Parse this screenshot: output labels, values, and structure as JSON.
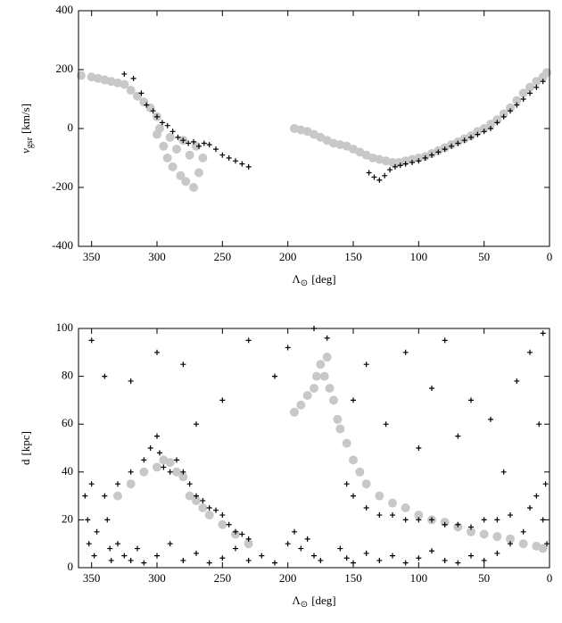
{
  "chart_data": [
    {
      "type": "scatter",
      "ylabel": {
        "symbol": "v",
        "sub": "gsr",
        "unit": "[km/s]"
      },
      "xlabel": {
        "symbol": "Λ",
        "sub": "⊙",
        "unit": "[deg]"
      },
      "xlim": [
        360,
        0
      ],
      "ylim": [
        -400,
        400
      ],
      "xticks": [
        350,
        300,
        250,
        200,
        150,
        100,
        50,
        0
      ],
      "yticks": [
        -400,
        -200,
        0,
        200,
        400
      ],
      "series": [
        {
          "color": "#c8c8c8",
          "marker": "dot",
          "x": [
            358,
            350,
            345,
            340,
            335,
            330,
            325,
            320,
            315,
            310,
            305,
            300,
            300,
            298,
            295,
            292,
            290,
            288,
            285,
            282,
            280,
            278,
            275,
            272,
            270,
            268,
            265,
            195,
            190,
            185,
            180,
            175,
            170,
            165,
            160,
            155,
            150,
            145,
            140,
            135,
            130,
            125,
            120,
            115,
            110,
            105,
            100,
            95,
            90,
            85,
            80,
            75,
            70,
            65,
            60,
            55,
            50,
            45,
            40,
            35,
            30,
            25,
            20,
            15,
            10,
            5,
            2
          ],
          "values": [
            180,
            175,
            170,
            165,
            160,
            155,
            150,
            130,
            110,
            90,
            70,
            40,
            -20,
            0,
            -60,
            -100,
            -30,
            -130,
            -70,
            -160,
            -40,
            -180,
            -90,
            -200,
            -60,
            -150,
            -100,
            0,
            -5,
            -10,
            -20,
            -30,
            -40,
            -50,
            -55,
            -60,
            -70,
            -80,
            -90,
            -100,
            -105,
            -110,
            -115,
            -115,
            -110,
            -105,
            -100,
            -95,
            -85,
            -75,
            -65,
            -55,
            -45,
            -35,
            -25,
            -10,
            0,
            15,
            30,
            50,
            70,
            95,
            120,
            140,
            160,
            175,
            190
          ]
        },
        {
          "color": "#000000",
          "marker": "plus",
          "x": [
            325,
            318,
            312,
            308,
            303,
            300,
            296,
            292,
            288,
            284,
            280,
            276,
            272,
            268,
            264,
            260,
            255,
            250,
            245,
            240,
            235,
            230,
            138,
            134,
            130,
            126,
            122,
            118,
            114,
            110,
            105,
            100,
            95,
            90,
            85,
            80,
            75,
            70,
            65,
            60,
            55,
            50,
            45,
            40,
            35,
            30,
            25,
            20,
            15,
            10,
            5
          ],
          "values": [
            185,
            170,
            120,
            80,
            60,
            40,
            20,
            10,
            -10,
            -30,
            -40,
            -50,
            -45,
            -60,
            -50,
            -55,
            -70,
            -90,
            -100,
            -110,
            -120,
            -130,
            -150,
            -165,
            -175,
            -160,
            -140,
            -130,
            -125,
            -120,
            -115,
            -110,
            -100,
            -90,
            -80,
            -70,
            -60,
            -50,
            -40,
            -30,
            -20,
            -10,
            0,
            20,
            40,
            60,
            80,
            100,
            120,
            140,
            160
          ]
        }
      ]
    },
    {
      "type": "scatter",
      "ylabel": {
        "symbol": "d",
        "sub": "",
        "unit": "[kpc]"
      },
      "xlabel": {
        "symbol": "Λ",
        "sub": "⊙",
        "unit": "[deg]"
      },
      "xlim": [
        360,
        0
      ],
      "ylim": [
        0,
        100
      ],
      "xticks": [
        350,
        300,
        250,
        200,
        150,
        100,
        50,
        0
      ],
      "yticks": [
        0,
        20,
        40,
        60,
        80,
        100
      ],
      "series": [
        {
          "color": "#c8c8c8",
          "marker": "dot",
          "x": [
            330,
            320,
            310,
            300,
            295,
            290,
            285,
            280,
            275,
            270,
            265,
            260,
            250,
            240,
            230,
            195,
            190,
            185,
            180,
            178,
            175,
            172,
            170,
            168,
            165,
            162,
            160,
            155,
            150,
            145,
            140,
            130,
            120,
            110,
            100,
            90,
            80,
            70,
            60,
            50,
            40,
            30,
            20,
            10,
            5
          ],
          "values": [
            30,
            35,
            40,
            42,
            45,
            44,
            40,
            38,
            30,
            28,
            25,
            22,
            18,
            14,
            10,
            65,
            68,
            72,
            75,
            80,
            85,
            80,
            88,
            75,
            70,
            62,
            58,
            52,
            45,
            40,
            35,
            30,
            27,
            25,
            22,
            20,
            19,
            17,
            15,
            14,
            13,
            12,
            10,
            9,
            8
          ]
        },
        {
          "color": "#000000",
          "marker": "plus",
          "x": [
            355,
            353,
            352,
            350,
            348,
            346,
            340,
            338,
            336,
            335,
            330,
            325,
            320,
            315,
            310,
            300,
            290,
            280,
            270,
            260,
            250,
            240,
            230,
            220,
            210,
            200,
            195,
            190,
            185,
            180,
            175,
            160,
            155,
            150,
            140,
            130,
            120,
            110,
            100,
            90,
            80,
            70,
            60,
            50,
            40,
            30,
            20,
            15,
            10,
            5,
            3,
            2,
            330,
            320,
            310,
            305,
            300,
            298,
            295,
            290,
            285,
            280,
            275,
            270,
            265,
            260,
            255,
            250,
            245,
            240,
            235,
            230,
            155,
            150,
            140,
            130,
            120,
            110,
            100,
            90,
            80,
            70,
            60,
            50,
            40,
            30,
            350,
            340,
            320,
            300,
            280,
            270,
            250,
            230,
            210,
            200,
            180,
            170,
            150,
            140,
            125,
            110,
            100,
            90,
            80,
            70,
            60,
            45,
            35,
            25,
            15,
            8,
            5
          ],
          "values": [
            30,
            20,
            10,
            35,
            5,
            15,
            30,
            20,
            8,
            3,
            10,
            5,
            3,
            8,
            2,
            5,
            10,
            3,
            6,
            2,
            4,
            8,
            3,
            5,
            2,
            10,
            15,
            8,
            12,
            5,
            3,
            8,
            4,
            2,
            6,
            3,
            5,
            2,
            4,
            7,
            3,
            2,
            5,
            3,
            6,
            10,
            15,
            25,
            30,
            20,
            35,
            10,
            35,
            40,
            45,
            50,
            55,
            48,
            42,
            40,
            45,
            40,
            35,
            30,
            28,
            25,
            24,
            22,
            18,
            15,
            14,
            12,
            35,
            30,
            25,
            22,
            22,
            20,
            20,
            20,
            18,
            18,
            17,
            20,
            20,
            22,
            95,
            80,
            78,
            90,
            85,
            60,
            70,
            95,
            80,
            92,
            100,
            96,
            70,
            85,
            60,
            90,
            50,
            75,
            95,
            55,
            70,
            62,
            40,
            78,
            90,
            60,
            98
          ]
        }
      ]
    }
  ]
}
